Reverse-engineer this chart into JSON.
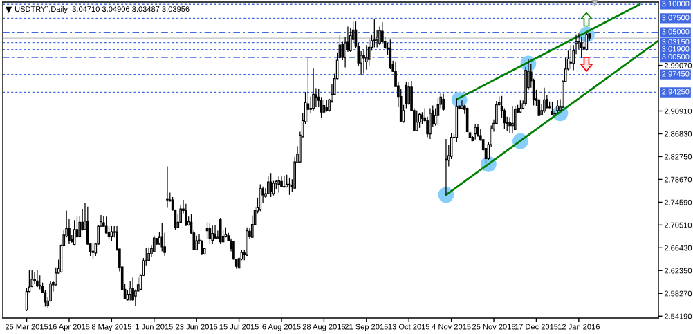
{
  "chart_data": {
    "type": "candlestick",
    "title": "USDTRY`,Daily  3.04710 3.04906 3.03487 3.03956",
    "color": "#000000",
    "categories": [
      "25 Mar 2015",
      null,
      null,
      null,
      null,
      null,
      null,
      null,
      null,
      null,
      null,
      null,
      null,
      null,
      null,
      null,
      "16 Apr 2015",
      null,
      null,
      null,
      null,
      null,
      null,
      null,
      null,
      null,
      null,
      null,
      null,
      null,
      null,
      null,
      "8 May 2015",
      null,
      null,
      null,
      null,
      null,
      null,
      null,
      null,
      null,
      null,
      null,
      null,
      null,
      null,
      null,
      "1 Jun 2015",
      null,
      null,
      null,
      null,
      null,
      null,
      null,
      null,
      null,
      null,
      null,
      null,
      null,
      null,
      null,
      "23 Jun 2015",
      null,
      null,
      null,
      null,
      null,
      null,
      null,
      null,
      null,
      null,
      null,
      null,
      null,
      null,
      null,
      "15 Jul 2015",
      null,
      null,
      null,
      null,
      null,
      null,
      null,
      null,
      null,
      null,
      null,
      null,
      null,
      null,
      null,
      "6 Aug 2015",
      null,
      null,
      null,
      null,
      null,
      null,
      null,
      null,
      null,
      null,
      null,
      null,
      null,
      null,
      null,
      "28 Aug 2015",
      null,
      null,
      null,
      null,
      null,
      null,
      null,
      null,
      null,
      null,
      null,
      null,
      null,
      null,
      null,
      "21 Sep 2015",
      null,
      null,
      null,
      null,
      null,
      null,
      null,
      null,
      null,
      null,
      null,
      null,
      null,
      null,
      null,
      "13 Oct 2015",
      null,
      null,
      null,
      null,
      null,
      null,
      null,
      null,
      null,
      null,
      null,
      null,
      null,
      null,
      null,
      "4 Nov 2015",
      null,
      null,
      null,
      null,
      null,
      null,
      null,
      null,
      null,
      null,
      null,
      null,
      null,
      null,
      null,
      "25 Nov 2015",
      null,
      null,
      null,
      null,
      null,
      null,
      null,
      null,
      null,
      null,
      null,
      null,
      null,
      null,
      null,
      "17 Dec 2015",
      null,
      null,
      null,
      null,
      null,
      null,
      null,
      null,
      null,
      null,
      null,
      null,
      null,
      null,
      null,
      "12 Jan 2016",
      null,
      null,
      null,
      null,
      null,
      null,
      null,
      null,
      null,
      null,
      null,
      null,
      null,
      null,
      null,
      null,
      null,
      null,
      null,
      null,
      null,
      null,
      null,
      null,
      null,
      null,
      null,
      null,
      null,
      null
    ],
    "ohlc": [
      [
        2.553,
        2.592,
        2.551,
        2.586
      ],
      [
        2.586,
        2.625,
        2.585,
        2.594
      ],
      [
        2.595,
        2.625,
        2.594,
        2.608
      ],
      [
        2.608,
        2.621,
        2.6,
        2.605
      ],
      [
        2.605,
        2.625,
        2.594,
        2.596
      ],
      [
        2.596,
        2.615,
        2.59,
        2.597
      ],
      [
        2.596,
        2.602,
        2.583,
        2.584
      ],
      [
        2.584,
        2.588,
        2.559,
        2.567
      ],
      [
        2.561,
        2.576,
        2.556,
        2.569
      ],
      [
        2.569,
        2.605,
        2.568,
        2.6
      ],
      [
        2.602,
        2.605,
        2.586,
        2.598
      ],
      [
        2.598,
        2.629,
        2.597,
        2.619
      ],
      [
        2.619,
        2.643,
        2.618,
        2.627
      ],
      [
        2.621,
        2.67,
        2.62,
        2.668
      ],
      [
        2.668,
        2.697,
        2.667,
        2.687
      ],
      [
        2.685,
        2.731,
        2.683,
        2.699
      ],
      [
        2.699,
        2.716,
        2.671,
        2.677
      ],
      [
        2.679,
        2.687,
        2.674,
        2.675
      ],
      [
        2.67,
        2.714,
        2.668,
        2.697
      ],
      [
        2.697,
        2.72,
        2.682,
        2.684
      ],
      [
        2.684,
        2.721,
        2.683,
        2.71
      ],
      [
        2.71,
        2.734,
        2.695,
        2.697
      ],
      [
        2.697,
        2.744,
        2.696,
        2.712
      ],
      [
        2.712,
        2.738,
        2.669,
        2.671
      ],
      [
        2.671,
        2.673,
        2.65,
        2.658
      ],
      [
        2.658,
        2.672,
        2.645,
        2.656
      ],
      [
        2.655,
        2.673,
        2.65,
        2.671
      ],
      [
        2.671,
        2.705,
        2.67,
        2.703
      ],
      [
        2.703,
        2.723,
        2.702,
        2.711
      ],
      [
        2.709,
        2.721,
        2.702,
        2.703
      ],
      [
        2.703,
        2.72,
        2.69,
        2.691
      ],
      [
        2.692,
        2.703,
        2.679,
        2.684
      ],
      [
        2.684,
        2.703,
        2.677,
        2.693
      ],
      [
        2.692,
        2.703,
        2.683,
        2.693
      ],
      [
        2.693,
        2.703,
        2.659,
        2.661
      ],
      [
        2.662,
        2.663,
        2.622,
        2.629
      ],
      [
        2.63,
        2.631,
        2.588,
        2.59
      ],
      [
        2.59,
        2.6,
        2.573,
        2.574
      ],
      [
        2.571,
        2.589,
        2.57,
        2.581
      ],
      [
        2.581,
        2.604,
        2.57,
        2.592
      ],
      [
        2.592,
        2.611,
        2.569,
        2.571
      ],
      [
        2.578,
        2.59,
        2.56,
        2.587
      ],
      [
        2.587,
        2.611,
        2.586,
        2.598
      ],
      [
        2.59,
        2.617,
        2.589,
        2.615
      ],
      [
        2.615,
        2.646,
        2.614,
        2.641
      ],
      [
        2.641,
        2.664,
        2.633,
        2.642
      ],
      [
        2.642,
        2.665,
        2.641,
        2.654
      ],
      [
        2.653,
        2.668,
        2.648,
        2.663
      ],
      [
        2.657,
        2.686,
        2.656,
        2.682
      ],
      [
        2.681,
        2.682,
        2.67,
        2.671
      ],
      [
        2.671,
        2.693,
        2.67,
        2.683
      ],
      [
        2.683,
        2.708,
        2.658,
        2.666
      ],
      [
        2.666,
        2.691,
        2.65,
        2.656
      ],
      [
        2.751,
        2.81,
        2.736,
        2.75
      ],
      [
        2.75,
        2.763,
        2.747,
        2.748
      ],
      [
        2.75,
        2.755,
        2.731,
        2.732
      ],
      [
        2.732,
        2.733,
        2.697,
        2.701
      ],
      [
        2.701,
        2.725,
        2.7,
        2.71
      ],
      [
        2.71,
        2.741,
        2.709,
        2.734
      ],
      [
        2.734,
        2.75,
        2.726,
        2.731
      ],
      [
        2.731,
        2.743,
        2.703,
        2.705
      ],
      [
        2.705,
        2.72,
        2.704,
        2.711
      ],
      [
        2.71,
        2.724,
        2.689,
        2.691
      ],
      [
        2.691,
        2.696,
        2.66,
        2.661
      ],
      [
        2.661,
        2.686,
        2.66,
        2.677
      ],
      [
        2.677,
        2.689,
        2.671,
        2.678
      ],
      [
        2.675,
        2.678,
        2.651,
        2.654
      ],
      [
        2.653,
        2.664,
        2.652,
        2.663
      ],
      [
        2.695,
        2.71,
        2.681,
        2.699
      ],
      [
        2.699,
        2.708,
        2.671,
        2.681
      ],
      [
        2.678,
        2.704,
        2.671,
        2.69
      ],
      [
        2.689,
        2.705,
        2.681,
        2.682
      ],
      [
        2.681,
        2.695,
        2.68,
        2.683
      ],
      [
        2.716,
        2.718,
        2.671,
        2.675
      ],
      [
        2.675,
        2.697,
        2.674,
        2.684
      ],
      [
        2.684,
        2.701,
        2.683,
        2.688
      ],
      [
        2.686,
        2.691,
        2.676,
        2.677
      ],
      [
        2.677,
        2.681,
        2.658,
        2.663
      ],
      [
        2.675,
        2.676,
        2.643,
        2.644
      ],
      [
        2.644,
        2.645,
        2.627,
        2.631
      ],
      [
        2.628,
        2.648,
        2.627,
        2.645
      ],
      [
        2.644,
        2.66,
        2.642,
        2.656
      ],
      [
        2.655,
        2.66,
        2.642,
        2.652
      ],
      [
        2.651,
        2.701,
        2.65,
        2.695
      ],
      [
        2.694,
        2.699,
        2.681,
        2.684
      ],
      [
        2.683,
        2.722,
        2.682,
        2.706
      ],
      [
        2.706,
        2.737,
        2.705,
        2.731
      ],
      [
        2.73,
        2.754,
        2.726,
        2.736
      ],
      [
        2.733,
        2.778,
        2.73,
        2.77
      ],
      [
        2.77,
        2.774,
        2.745,
        2.759
      ],
      [
        2.756,
        2.771,
        2.753,
        2.761
      ],
      [
        2.761,
        2.792,
        2.76,
        2.782
      ],
      [
        2.782,
        2.798,
        2.755,
        2.765
      ],
      [
        2.761,
        2.784,
        2.758,
        2.78
      ],
      [
        2.78,
        2.786,
        2.769,
        2.783
      ],
      [
        2.778,
        2.792,
        2.763,
        2.784
      ],
      [
        2.783,
        2.792,
        2.773,
        2.774
      ],
      [
        2.774,
        2.793,
        2.772,
        2.773
      ],
      [
        2.773,
        2.795,
        2.772,
        2.778
      ],
      [
        2.778,
        2.789,
        2.759,
        2.777
      ],
      [
        2.776,
        2.787,
        2.765,
        2.774
      ],
      [
        2.771,
        2.827,
        2.77,
        2.818
      ],
      [
        2.817,
        2.846,
        2.816,
        2.832
      ],
      [
        2.818,
        2.872,
        2.817,
        2.866
      ],
      [
        2.863,
        2.905,
        2.862,
        2.892
      ],
      [
        2.89,
        2.943,
        2.886,
        2.924
      ],
      [
        2.922,
        3.004,
        2.889,
        2.912
      ],
      [
        2.912,
        2.935,
        2.905,
        2.914
      ],
      [
        2.914,
        2.985,
        2.91,
        2.939
      ],
      [
        2.938,
        2.95,
        2.916,
        2.933
      ],
      [
        2.934,
        2.949,
        2.916,
        2.928
      ],
      [
        2.928,
        2.934,
        2.897,
        2.907
      ],
      [
        2.907,
        2.929,
        2.906,
        2.919
      ],
      [
        2.915,
        2.929,
        2.908,
        2.91
      ],
      [
        2.91,
        2.931,
        2.908,
        2.929
      ],
      [
        2.927,
        2.958,
        2.924,
        2.939
      ],
      [
        2.939,
        2.976,
        2.938,
        2.967
      ],
      [
        2.967,
        3.014,
        2.966,
        3.0
      ],
      [
        3.005,
        3.045,
        3.003,
        3.027
      ],
      [
        3.028,
        3.033,
        3.0,
        3.005
      ],
      [
        3.005,
        3.042,
        2.987,
        3.031
      ],
      [
        3.032,
        3.06,
        3.015,
        3.019
      ],
      [
        3.017,
        3.058,
        3.015,
        3.044
      ],
      [
        3.037,
        3.069,
        3.031,
        3.054
      ],
      [
        3.054,
        3.069,
        3.022,
        3.025
      ],
      [
        3.025,
        3.031,
        2.99,
        2.995
      ],
      [
        2.995,
        3.016,
        2.973,
        3.009
      ],
      [
        3.008,
        3.019,
        2.976,
        3.004
      ],
      [
        2.997,
        3.027,
        2.983,
        3.004
      ],
      [
        3.001,
        3.039,
        2.989,
        3.023
      ],
      [
        3.023,
        3.046,
        3.017,
        3.035
      ],
      [
        3.036,
        3.074,
        3.023,
        3.035
      ],
      [
        3.036,
        3.054,
        3.023,
        3.041
      ],
      [
        3.03,
        3.06,
        3.027,
        3.053
      ],
      [
        3.052,
        3.068,
        3.03,
        3.033
      ],
      [
        3.033,
        3.041,
        3.02,
        3.022
      ],
      [
        3.022,
        3.031,
        3.009,
        3.02
      ],
      [
        3.022,
        3.037,
        2.984,
        2.986
      ],
      [
        2.992,
        2.999,
        2.979,
        2.98
      ],
      [
        2.98,
        2.998,
        2.952,
        2.953
      ],
      [
        2.954,
        2.961,
        2.916,
        2.935
      ],
      [
        2.935,
        2.949,
        2.89,
        2.891
      ],
      [
        2.89,
        2.92,
        2.888,
        2.91
      ],
      [
        2.955,
        2.961,
        2.914,
        2.922
      ],
      [
        2.922,
        2.961,
        2.92,
        2.952
      ],
      [
        2.952,
        2.963,
        2.909,
        2.91
      ],
      [
        2.91,
        2.914,
        2.873,
        2.874
      ],
      [
        2.874,
        2.91,
        2.873,
        2.889
      ],
      [
        2.889,
        2.906,
        2.879,
        2.903
      ],
      [
        2.902,
        2.907,
        2.885,
        2.896
      ],
      [
        2.897,
        2.914,
        2.89,
        2.892
      ],
      [
        2.892,
        2.899,
        2.862,
        2.868
      ],
      [
        2.868,
        2.914,
        2.859,
        2.905
      ],
      [
        2.91,
        2.919,
        2.881,
        2.886
      ],
      [
        2.886,
        2.914,
        2.883,
        2.901
      ],
      [
        2.901,
        2.933,
        2.884,
        2.92
      ],
      [
        2.921,
        2.942,
        2.914,
        2.934
      ],
      [
        2.93,
        2.94,
        2.909,
        2.912
      ],
      [
        2.823,
        2.859,
        2.759,
        2.821
      ],
      [
        2.821,
        2.849,
        2.81,
        2.829
      ],
      [
        2.828,
        2.869,
        2.823,
        2.862
      ],
      [
        2.862,
        2.868,
        2.86,
        2.861
      ],
      [
        2.862,
        2.931,
        2.853,
        2.917
      ],
      [
        2.918,
        2.919,
        2.912,
        2.914
      ],
      [
        2.914,
        2.928,
        2.913,
        2.918
      ],
      [
        2.918,
        2.92,
        2.904,
        2.912
      ],
      [
        2.914,
        2.915,
        2.871,
        2.872
      ],
      [
        2.87,
        2.872,
        2.861,
        2.862
      ],
      [
        2.862,
        2.864,
        2.855,
        2.856
      ],
      [
        2.868,
        2.886,
        2.858,
        2.88
      ],
      [
        2.88,
        2.886,
        2.863,
        2.865
      ],
      [
        2.865,
        2.877,
        2.856,
        2.857
      ],
      [
        2.858,
        2.859,
        2.837,
        2.84
      ],
      [
        2.842,
        2.843,
        2.815,
        2.824
      ],
      [
        2.824,
        2.853,
        2.822,
        2.849
      ],
      [
        2.849,
        2.883,
        2.844,
        2.877
      ],
      [
        2.877,
        2.894,
        2.872,
        2.887
      ],
      [
        2.887,
        2.927,
        2.886,
        2.92
      ],
      [
        2.92,
        2.935,
        2.919,
        2.924
      ],
      [
        2.917,
        2.936,
        2.897,
        2.91
      ],
      [
        2.91,
        2.914,
        2.877,
        2.888
      ],
      [
        2.889,
        2.899,
        2.873,
        2.887
      ],
      [
        2.888,
        2.898,
        2.87,
        2.883
      ],
      [
        2.883,
        2.917,
        2.869,
        2.887
      ],
      [
        2.876,
        2.917,
        2.875,
        2.912
      ],
      [
        2.914,
        2.92,
        2.906,
        2.907
      ],
      [
        2.907,
        2.928,
        2.906,
        2.914
      ],
      [
        2.914,
        2.928,
        2.913,
        2.922
      ],
      [
        2.923,
        2.988,
        2.918,
        2.982
      ],
      [
        2.951,
        3.002,
        2.947,
        2.98
      ],
      [
        2.979,
        2.994,
        2.951,
        2.963
      ],
      [
        2.964,
        2.967,
        2.919,
        2.93
      ],
      [
        2.931,
        2.947,
        2.918,
        2.928
      ],
      [
        2.929,
        2.93,
        2.9,
        2.901
      ],
      [
        2.902,
        2.922,
        2.901,
        2.91
      ],
      [
        2.909,
        2.951,
        2.905,
        2.929
      ],
      [
        2.93,
        2.938,
        2.914,
        2.915
      ],
      [
        2.915,
        2.926,
        2.914,
        2.916
      ],
      [
        2.908,
        2.926,
        2.902,
        2.903
      ],
      [
        2.904,
        2.91,
        2.903,
        2.905
      ],
      [
        2.91,
        2.929,
        2.906,
        2.918
      ],
      [
        2.91,
        2.93,
        2.909,
        2.916
      ],
      [
        2.916,
        2.964,
        2.915,
        2.962
      ],
      [
        2.962,
        3.004,
        2.961,
        2.984
      ],
      [
        2.984,
        3.017,
        2.982,
        3.002
      ],
      [
        2.997,
        3.027,
        2.984,
        2.995
      ],
      [
        2.994,
        3.027,
        2.982,
        3.017
      ],
      [
        3.03,
        3.046,
        3.011,
        3.033
      ],
      [
        3.033,
        3.048,
        3.02,
        3.041
      ],
      [
        3.031,
        3.041,
        3.004,
        3.023
      ],
      [
        3.023,
        3.041,
        3.018,
        3.02
      ],
      [
        3.019,
        3.049,
        3.017,
        3.046
      ],
      [
        3.0471,
        3.04906,
        3.03487,
        3.03956
      ],
      null,
      null,
      null,
      null,
      null,
      null,
      null,
      null,
      null,
      null,
      null,
      null,
      null,
      null,
      null,
      null,
      null,
      null,
      null,
      null,
      null,
      null,
      null,
      null,
      null,
      null
    ],
    "series": [
      {
        "type": "scatter",
        "marker": "circle",
        "color": "#87cefa",
        "values": [
          null,
          null,
          null,
          null,
          null,
          null,
          null,
          null,
          null,
          null,
          null,
          null,
          null,
          null,
          null,
          null,
          null,
          null,
          null,
          null,
          null,
          null,
          null,
          null,
          null,
          null,
          null,
          null,
          null,
          null,
          null,
          null,
          null,
          null,
          null,
          null,
          null,
          null,
          null,
          null,
          null,
          null,
          null,
          null,
          null,
          null,
          null,
          null,
          null,
          null,
          null,
          null,
          null,
          null,
          null,
          null,
          null,
          null,
          null,
          null,
          null,
          null,
          null,
          null,
          null,
          null,
          null,
          null,
          null,
          null,
          null,
          null,
          null,
          null,
          null,
          null,
          null,
          null,
          null,
          null,
          null,
          null,
          null,
          null,
          null,
          null,
          null,
          null,
          null,
          null,
          null,
          null,
          null,
          null,
          null,
          null,
          null,
          null,
          null,
          null,
          null,
          null,
          null,
          null,
          null,
          null,
          null,
          null,
          null,
          null,
          null,
          null,
          null,
          null,
          null,
          null,
          null,
          null,
          null,
          null,
          null,
          null,
          null,
          null,
          null,
          null,
          null,
          null,
          null,
          null,
          null,
          null,
          null,
          null,
          null,
          null,
          null,
          null,
          null,
          null,
          null,
          null,
          null,
          null,
          null,
          null,
          null,
          null,
          null,
          null,
          null,
          null,
          null,
          null,
          null,
          null,
          null,
          null,
          2.759,
          null,
          null,
          null,
          null,
          2.929,
          null,
          null,
          null,
          null,
          null,
          null,
          null,
          null,
          null,
          null,
          2.814,
          null,
          null,
          null,
          null,
          null,
          null,
          null,
          null,
          null,
          null,
          null,
          2.855,
          null,
          null,
          2.994,
          null,
          null,
          null,
          null,
          null,
          null,
          null,
          null,
          null,
          null,
          null,
          2.905,
          null,
          null,
          null,
          null,
          null,
          null,
          null,
          null,
          null,
          3.046,
          null,
          null,
          null,
          null,
          null,
          null,
          null,
          null,
          null,
          null,
          null,
          null,
          null,
          null,
          null,
          null,
          null,
          null,
          null,
          null,
          null,
          null,
          null,
          null,
          null,
          null,
          null
        ]
      },
      {
        "type": "line",
        "color": "#008000",
        "values": [
          null,
          null,
          null,
          null,
          null,
          null,
          null,
          null,
          null,
          null,
          null,
          null,
          null,
          null,
          null,
          null,
          null,
          null,
          null,
          null,
          null,
          null,
          null,
          null,
          null,
          null,
          null,
          null,
          null,
          null,
          null,
          null,
          null,
          null,
          null,
          null,
          null,
          null,
          null,
          null,
          null,
          null,
          null,
          null,
          null,
          null,
          null,
          null,
          null,
          null,
          null,
          null,
          null,
          null,
          null,
          null,
          null,
          null,
          null,
          null,
          null,
          null,
          null,
          null,
          null,
          null,
          null,
          null,
          null,
          null,
          null,
          null,
          null,
          null,
          null,
          null,
          null,
          null,
          null,
          null,
          null,
          null,
          null,
          null,
          null,
          null,
          null,
          null,
          null,
          null,
          null,
          null,
          null,
          null,
          null,
          null,
          null,
          null,
          null,
          null,
          null,
          null,
          null,
          null,
          null,
          null,
          null,
          null,
          null,
          null,
          null,
          null,
          null,
          null,
          null,
          null,
          null,
          null,
          null,
          null,
          null,
          null,
          null,
          null,
          null,
          null,
          null,
          null,
          null,
          null,
          null,
          null,
          null,
          null,
          null,
          null,
          null,
          null,
          null,
          null,
          null,
          null,
          null,
          null,
          null,
          null,
          null,
          null,
          null,
          null,
          null,
          null,
          null,
          null,
          null,
          null,
          null,
          null,
          2.759,
          null,
          null,
          null,
          null,
          null,
          null,
          null,
          null,
          null,
          null,
          null,
          null,
          null,
          null,
          null,
          null,
          null,
          null,
          null,
          null,
          null,
          null,
          null,
          null,
          null,
          null,
          null,
          null,
          null,
          null,
          null,
          null,
          null,
          null,
          null,
          null,
          null,
          null,
          null,
          null,
          null,
          null,
          null,
          null,
          null,
          null,
          null,
          null,
          null,
          null,
          null,
          null,
          null,
          null,
          null,
          null,
          null,
          null,
          null,
          null,
          null,
          null,
          null,
          null,
          null,
          null,
          null,
          null,
          null,
          null,
          null,
          null,
          null,
          null,
          null,
          null,
          null,
          null,
          null,
          3.035
        ]
      },
      {
        "type": "line",
        "color": "#008000",
        "values": [
          null,
          null,
          null,
          null,
          null,
          null,
          null,
          null,
          null,
          null,
          null,
          null,
          null,
          null,
          null,
          null,
          null,
          null,
          null,
          null,
          null,
          null,
          null,
          null,
          null,
          null,
          null,
          null,
          null,
          null,
          null,
          null,
          null,
          null,
          null,
          null,
          null,
          null,
          null,
          null,
          null,
          null,
          null,
          null,
          null,
          null,
          null,
          null,
          null,
          null,
          null,
          null,
          null,
          null,
          null,
          null,
          null,
          null,
          null,
          null,
          null,
          null,
          null,
          null,
          null,
          null,
          null,
          null,
          null,
          null,
          null,
          null,
          null,
          null,
          null,
          null,
          null,
          null,
          null,
          null,
          null,
          null,
          null,
          null,
          null,
          null,
          null,
          null,
          null,
          null,
          null,
          null,
          null,
          null,
          null,
          null,
          null,
          null,
          null,
          null,
          null,
          null,
          null,
          null,
          null,
          null,
          null,
          null,
          null,
          null,
          null,
          null,
          null,
          null,
          null,
          null,
          null,
          null,
          null,
          null,
          null,
          null,
          null,
          null,
          null,
          null,
          null,
          null,
          null,
          null,
          null,
          null,
          null,
          null,
          null,
          null,
          null,
          null,
          null,
          null,
          null,
          null,
          null,
          null,
          null,
          null,
          null,
          null,
          null,
          null,
          null,
          null,
          null,
          null,
          null,
          null,
          null,
          null,
          null,
          null,
          null,
          null,
          2.93,
          null,
          null,
          null,
          null,
          null,
          null,
          null,
          null,
          null,
          null,
          null,
          null,
          null,
          null,
          null,
          null,
          null,
          null,
          null,
          null,
          null,
          null,
          null,
          null,
          null,
          null,
          null,
          null,
          null,
          null,
          null,
          null,
          null,
          null,
          null,
          null,
          null,
          null,
          null,
          null,
          null,
          null,
          null,
          null,
          null,
          null,
          null,
          null,
          null,
          null,
          null,
          null,
          null,
          null,
          null,
          null,
          null,
          null,
          null,
          null,
          null,
          null,
          null,
          null,
          null,
          null,
          null,
          null,
          3.1,
          null,
          null,
          null,
          null,
          null,
          null,
          null
        ]
      }
    ],
    "ylim": [
      2.5385,
      3.104
    ],
    "yticks": [
      {
        "value": 2.5419,
        "label": "2.54190"
      },
      {
        "value": 2.5827,
        "label": "2.58270"
      },
      {
        "value": 2.6235,
        "label": "2.62350"
      },
      {
        "value": 2.6643,
        "label": "2.66430"
      },
      {
        "value": 2.7051,
        "label": "2.70510"
      },
      {
        "value": 2.7459,
        "label": "2.74590"
      },
      {
        "value": 2.7867,
        "label": "2.78670"
      },
      {
        "value": 2.8275,
        "label": "2.82750"
      },
      {
        "value": 2.8683,
        "label": "2.86830"
      },
      {
        "value": 2.9091,
        "label": "2.90910"
      },
      {
        "value": 2.9907,
        "label": "2.99070"
      }
    ],
    "ref_lines": [
      {
        "axis": "y",
        "value": 3.1,
        "label": "3.10000",
        "color": "#4169e1",
        "line_style": "dotted"
      },
      {
        "axis": "y",
        "value": 3.075,
        "label": "3.07500",
        "color": "#4169e1",
        "line_style": "dotted"
      },
      {
        "axis": "y",
        "value": 3.05,
        "label": "3.05000",
        "color": "#4169e1",
        "line_style": "dashdot"
      },
      {
        "axis": "y",
        "value": 3.0315,
        "label": "3.03150",
        "color": "#4169e1",
        "line_style": "dotted"
      },
      {
        "axis": "y",
        "value": 3.019,
        "label": "3.01900",
        "color": "#4169e1",
        "line_style": "dotted"
      },
      {
        "axis": "y",
        "value": 3.005,
        "label": "3.00500",
        "color": "#4169e1",
        "line_style": "dashdot"
      },
      {
        "axis": "y",
        "value": 2.9745,
        "label": "2.97450",
        "color": "#4169e1",
        "line_style": "dotted"
      },
      {
        "axis": "y",
        "value": 2.9425,
        "label": "2.94250",
        "color": "#4169e1",
        "line_style": "dotted"
      },
      {
        "axis": "y",
        "value": 3.03956,
        "color": "#c0c0c0",
        "line_style": "solid"
      }
    ]
  }
}
